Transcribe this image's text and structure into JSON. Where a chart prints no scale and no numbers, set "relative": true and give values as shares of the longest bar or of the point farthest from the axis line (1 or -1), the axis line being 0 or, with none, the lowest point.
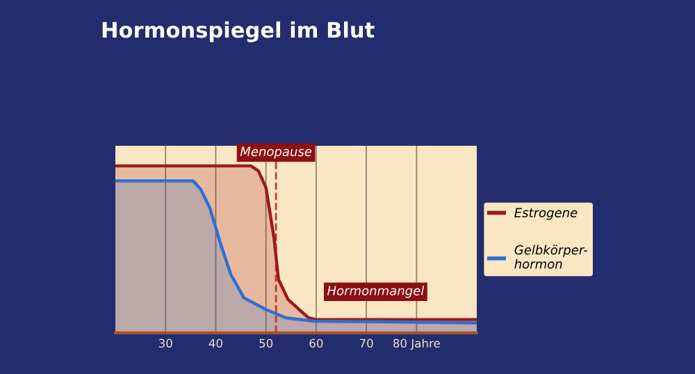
{
  "chart_data": {
    "type": "area",
    "title": "Hormonspiegel im Blut",
    "relative": true,
    "xlim": [
      20,
      92
    ],
    "xticks": [
      30,
      40,
      50,
      60,
      70,
      {
        "value": 80,
        "label": "80 Jahre"
      }
    ],
    "grid": "x",
    "legend": "right",
    "series": [
      {
        "name": "Estrogene",
        "color": "#9b1a1a",
        "x": [
          20,
          47,
          48.5,
          50,
          51.6,
          52.5,
          54.4,
          56.6,
          58.5,
          60,
          92
        ],
        "values": [
          1,
          1,
          0.97,
          0.87,
          0.57,
          0.32,
          0.2,
          0.14,
          0.09,
          0.08,
          0.08
        ]
      },
      {
        "name": "Gelbkörper-\nhormon",
        "color": "#2f6fd0",
        "x": [
          20,
          35.5,
          37,
          38.8,
          41,
          43,
          45.6,
          50,
          54,
          59.6,
          92
        ],
        "values": [
          0.91,
          0.91,
          0.86,
          0.75,
          0.53,
          0.35,
          0.21,
          0.14,
          0.09,
          0.07,
          0.06
        ]
      }
    ],
    "ref_lines": [
      {
        "axis": "x",
        "value": 52,
        "label": "Menopause",
        "color": "#c0392b",
        "line_style": "dashed"
      }
    ],
    "annotations": [
      "Hormonmangel"
    ]
  }
}
